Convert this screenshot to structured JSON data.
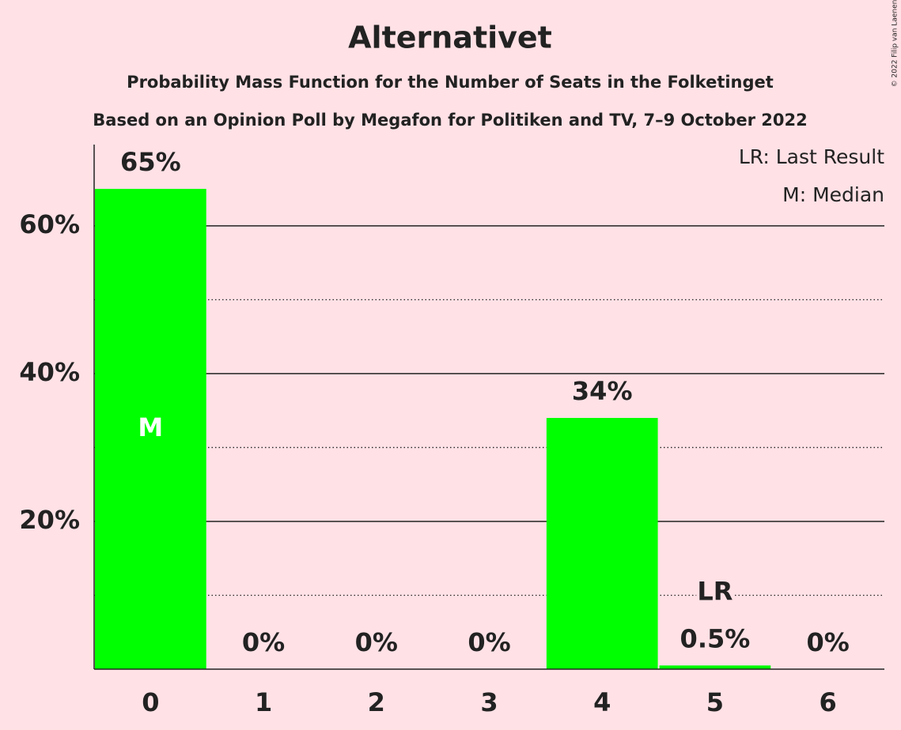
{
  "chart_data": {
    "type": "bar",
    "title": "Alternativet",
    "subtitle": "Probability Mass Function for the Number of Seats in the Folketinget",
    "subtitle2": "Based on an Opinion Poll by Megafon for Politiken and TV, 7–9 October 2022",
    "copyright": "© 2022 Filip van Laenen",
    "categories": [
      "0",
      "1",
      "2",
      "3",
      "4",
      "5",
      "6"
    ],
    "values": [
      65,
      0,
      0,
      0,
      34,
      0.5,
      0
    ],
    "value_labels": [
      "65%",
      "0%",
      "0%",
      "0%",
      "34%",
      "0.5%",
      "0%"
    ],
    "color": "#00ff00",
    "ylim": [
      0,
      71
    ],
    "yticks": [
      {
        "value": 20,
        "label": "20%"
      },
      {
        "value": 40,
        "label": "40%"
      },
      {
        "value": 60,
        "label": "60%"
      }
    ],
    "minor_yticks": [
      10,
      30,
      50
    ],
    "grid": true,
    "annotations": [
      {
        "text": "M",
        "at": "0"
      },
      {
        "text": "LR",
        "at": "5"
      }
    ],
    "legend": [
      "LR: Last Result",
      "M: Median"
    ]
  }
}
